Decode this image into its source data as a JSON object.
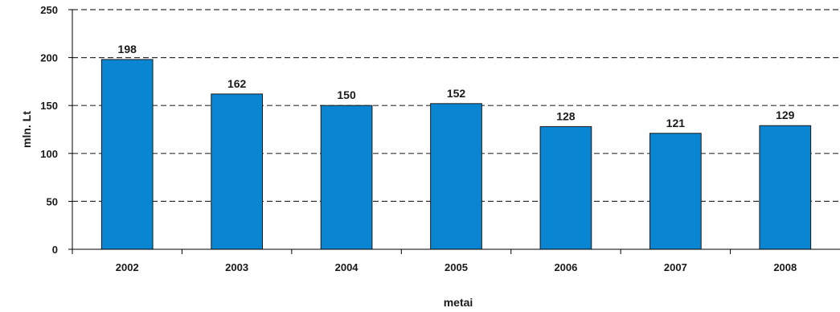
{
  "chart_data": {
    "type": "bar",
    "categories": [
      "2002",
      "2003",
      "2004",
      "2005",
      "2006",
      "2007",
      "2008"
    ],
    "values": [
      198,
      162,
      150,
      152,
      128,
      121,
      129
    ],
    "data_labels": [
      "198",
      "162",
      "150",
      "152",
      "128",
      "121",
      "129"
    ],
    "title": "",
    "xlabel": "metai",
    "ylabel": "mln. Lt",
    "ylim": [
      0,
      250
    ],
    "yticks": [
      0,
      50,
      100,
      150,
      200,
      250
    ],
    "ytick_labels": [
      "0",
      "50",
      "100",
      "150",
      "200",
      "250"
    ],
    "grid": "horizontal-dashed",
    "legend": "none",
    "colors": {
      "bar": "#0a85d1",
      "bar_edge": "#1a1a1a",
      "grid": "#333333",
      "axis": "#000000"
    }
  }
}
